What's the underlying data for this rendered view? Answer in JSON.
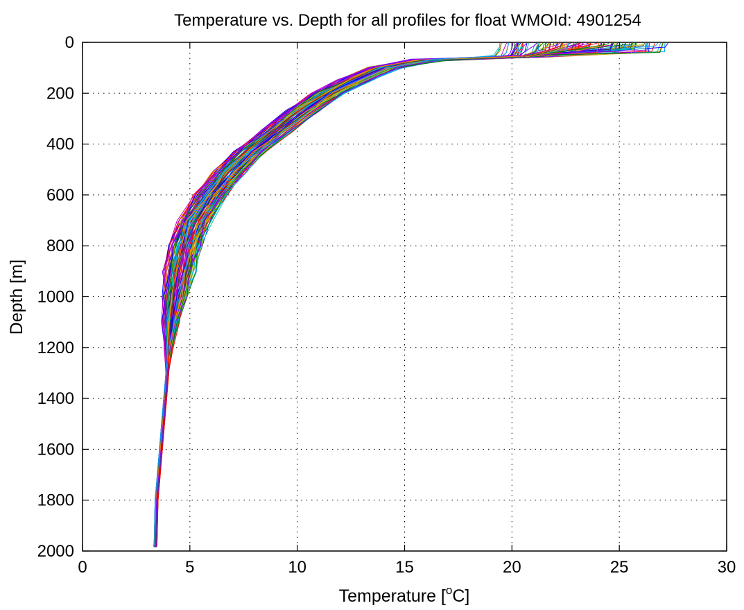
{
  "chart_data": {
    "type": "line",
    "title": "Temperature vs. Depth for all profiles for float WMOId: 4901254",
    "xlabel_main": "Temperature [",
    "xlabel_sup": "o",
    "xlabel_tail": "C]",
    "ylabel": "Depth [m]",
    "xlim": [
      0,
      30
    ],
    "ylim": [
      0,
      2000
    ],
    "y_reversed": true,
    "grid": true,
    "xticks": [
      0,
      5,
      10,
      15,
      20,
      25,
      30
    ],
    "yticks": [
      0,
      200,
      400,
      600,
      800,
      1000,
      1200,
      1400,
      1600,
      1800,
      2000
    ],
    "xtick_labels": [
      "0",
      "5",
      "10",
      "15",
      "20",
      "25",
      "30"
    ],
    "ytick_labels": [
      "0",
      "200",
      "400",
      "600",
      "800",
      "1000",
      "1200",
      "1400",
      "1600",
      "1800",
      "2000"
    ],
    "colors": [
      "#0000ff",
      "#008000",
      "#ff0000",
      "#00bfbf",
      "#bf00bf",
      "#bfbf00",
      "#404040",
      "#ff8000",
      "#8000ff",
      "#00a0ff"
    ],
    "profile_count": 120,
    "representative_profile": {
      "temperature": [
        27.0,
        26.5,
        25.5,
        21.0,
        16.0,
        14.0,
        12.6,
        11.4,
        10.2,
        9.0,
        7.8,
        6.8,
        6.0,
        5.2,
        4.8,
        4.5,
        4.3,
        4.1,
        4.0,
        3.95,
        3.85,
        3.75,
        3.65,
        3.55,
        3.45,
        3.4
      ],
      "depth": [
        5,
        20,
        40,
        55,
        70,
        100,
        150,
        200,
        270,
        350,
        430,
        510,
        600,
        700,
        800,
        900,
        1000,
        1100,
        1200,
        1300,
        1400,
        1500,
        1600,
        1700,
        1800,
        1980
      ]
    }
  }
}
